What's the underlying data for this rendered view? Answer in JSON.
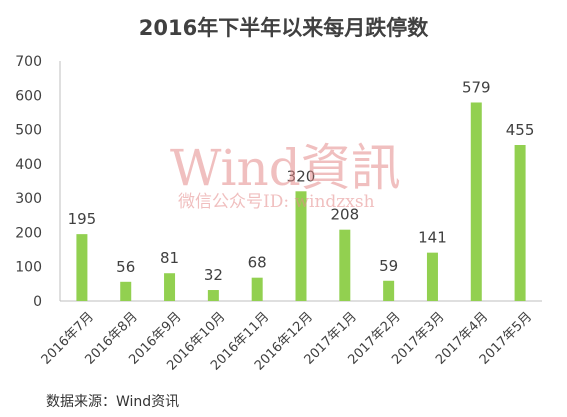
{
  "watermark": {
    "main": "Wind資訊",
    "sub": "微信公众号ID: windzxsh"
  },
  "source": "数据来源：Wind资讯",
  "chart_data": {
    "type": "bar",
    "title": "2016年下半年以来每月跌停数",
    "categories": [
      "2016年7月",
      "2016年8月",
      "2016年9月",
      "2016年10月",
      "2016年11月",
      "2016年12月",
      "2017年1月",
      "2017年2月",
      "2017年3月",
      "2017年4月",
      "2017年5月"
    ],
    "values": [
      195,
      56,
      81,
      32,
      68,
      320,
      208,
      59,
      141,
      579,
      455
    ],
    "ylim": [
      0,
      700
    ],
    "yticks": [
      0,
      100,
      200,
      300,
      400,
      500,
      600,
      700
    ],
    "bar_color": "#92d050",
    "grid": false,
    "data_labels": true,
    "legend": "none"
  }
}
